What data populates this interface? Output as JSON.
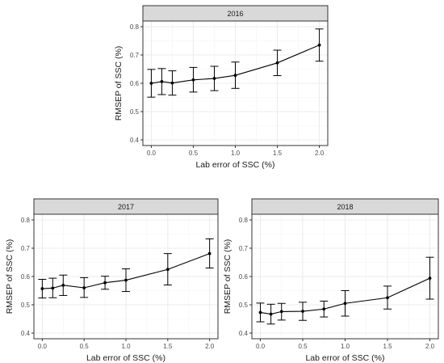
{
  "chart_data": [
    {
      "type": "line",
      "strip_title": "2016",
      "xlabel": "Lab error of SSC (%)",
      "ylabel": "RMSEP of SSC (%)",
      "xlim": [
        -0.1,
        2.1
      ],
      "ylim": [
        0.38,
        0.82
      ],
      "x_ticks": [
        "0.0",
        "0.5",
        "1.0",
        "1.5",
        "2.0"
      ],
      "y_ticks": [
        "0.4",
        "0.5",
        "0.6",
        "0.7",
        "0.8"
      ],
      "grid": true,
      "x": [
        0,
        0.125,
        0.25,
        0.5,
        0.75,
        1.0,
        1.5,
        2.0
      ],
      "y": [
        0.6,
        0.606,
        0.601,
        0.612,
        0.617,
        0.628,
        0.672,
        0.735
      ],
      "error_low": [
        0.551,
        0.56,
        0.558,
        0.569,
        0.574,
        0.582,
        0.627,
        0.678
      ],
      "error_high": [
        0.649,
        0.652,
        0.644,
        0.656,
        0.66,
        0.675,
        0.717,
        0.792
      ]
    },
    {
      "type": "line",
      "strip_title": "2017",
      "xlabel": "Lab error of SSC (%)",
      "ylabel": "RMSEP of SSC (%)",
      "xlim": [
        -0.1,
        2.1
      ],
      "ylim": [
        0.38,
        0.82
      ],
      "x_ticks": [
        "0.0",
        "0.5",
        "1.0",
        "1.5",
        "2.0"
      ],
      "y_ticks": [
        "0.4",
        "0.5",
        "0.6",
        "0.7",
        "0.8"
      ],
      "grid": true,
      "x": [
        0,
        0.125,
        0.25,
        0.5,
        0.75,
        1.0,
        1.5,
        2.0
      ],
      "y": [
        0.557,
        0.559,
        0.569,
        0.56,
        0.578,
        0.587,
        0.625,
        0.681
      ],
      "error_low": [
        0.524,
        0.525,
        0.533,
        0.526,
        0.555,
        0.547,
        0.57,
        0.63
      ],
      "error_high": [
        0.59,
        0.594,
        0.605,
        0.596,
        0.601,
        0.627,
        0.681,
        0.733
      ]
    },
    {
      "type": "line",
      "strip_title": "2018",
      "xlabel": "Lab error of SSC (%)",
      "ylabel": "RMSEP of SSC (%)",
      "xlim": [
        -0.1,
        2.1
      ],
      "ylim": [
        0.38,
        0.82
      ],
      "x_ticks": [
        "0.0",
        "0.5",
        "1.0",
        "1.5",
        "2.0"
      ],
      "y_ticks": [
        "0.4",
        "0.5",
        "0.6",
        "0.7",
        "0.8"
      ],
      "grid": true,
      "x": [
        0,
        0.125,
        0.25,
        0.5,
        0.75,
        1.0,
        1.5,
        2.0
      ],
      "y": [
        0.473,
        0.467,
        0.476,
        0.477,
        0.485,
        0.505,
        0.525,
        0.594
      ],
      "error_low": [
        0.44,
        0.432,
        0.446,
        0.445,
        0.457,
        0.46,
        0.485,
        0.52
      ],
      "error_high": [
        0.506,
        0.502,
        0.505,
        0.509,
        0.513,
        0.55,
        0.566,
        0.668
      ]
    }
  ],
  "colors": {
    "strip_fill": "#d9d9d9",
    "frame": "#333333",
    "grid_major": "#ebebeb",
    "grid_minor": "#f4f4f4",
    "line": "#000000",
    "tick_label": "#4d4d4d",
    "title_text": "#1a1a1a"
  }
}
